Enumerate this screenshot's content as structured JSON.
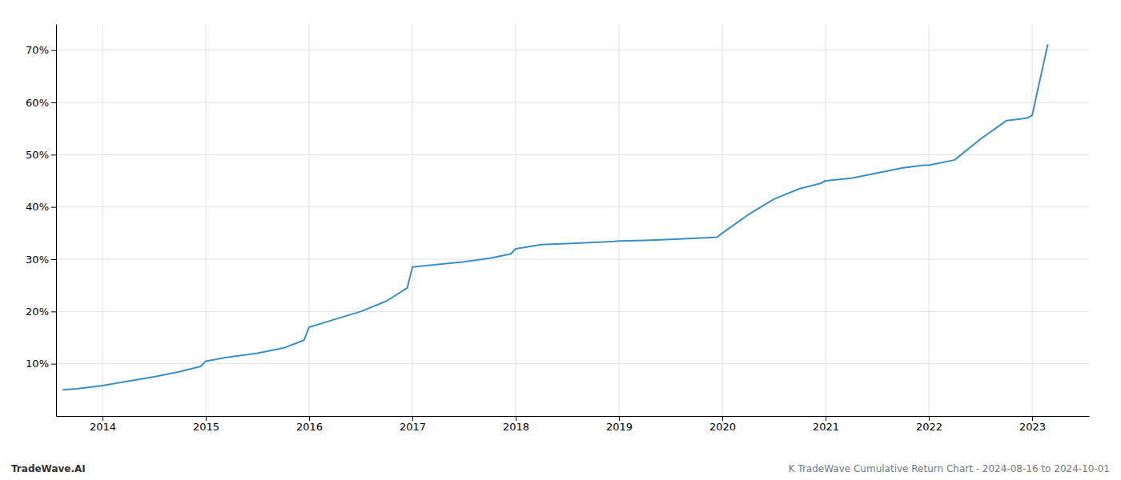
{
  "chart_data": {
    "type": "line",
    "x": [
      2013.62,
      2013.75,
      2014.0,
      2014.2,
      2014.5,
      2014.75,
      2014.95,
      2015.0,
      2015.2,
      2015.5,
      2015.75,
      2015.95,
      2016.0,
      2016.25,
      2016.5,
      2016.75,
      2016.95,
      2017.0,
      2017.25,
      2017.5,
      2017.75,
      2017.95,
      2018.0,
      2018.25,
      2018.5,
      2018.75,
      2018.95,
      2019.0,
      2019.25,
      2019.5,
      2019.75,
      2019.95,
      2020.0,
      2020.25,
      2020.5,
      2020.75,
      2020.95,
      2021.0,
      2021.25,
      2021.5,
      2021.75,
      2021.95,
      2022.0,
      2022.25,
      2022.5,
      2022.75,
      2022.95,
      2023.0,
      2023.15
    ],
    "values": [
      5.0,
      5.2,
      5.8,
      6.5,
      7.5,
      8.5,
      9.5,
      10.5,
      11.2,
      12.0,
      13.0,
      14.5,
      17.0,
      18.5,
      20.0,
      22.0,
      24.5,
      28.5,
      29.0,
      29.5,
      30.2,
      31.0,
      32.0,
      32.8,
      33.0,
      33.2,
      33.4,
      33.5,
      33.6,
      33.8,
      34.0,
      34.2,
      35.0,
      38.5,
      41.5,
      43.5,
      44.5,
      45.0,
      45.5,
      46.5,
      47.5,
      48.0,
      48.0,
      49.0,
      53.0,
      56.5,
      57.0,
      57.5,
      71.0
    ],
    "color": "#3a90c4",
    "xlim": [
      2013.55,
      2023.55
    ],
    "ylim": [
      0,
      75
    ],
    "xticks": [
      2014,
      2015,
      2016,
      2017,
      2018,
      2019,
      2020,
      2021,
      2022,
      2023
    ],
    "yticks": [
      {
        "value": 10,
        "label": "10%"
      },
      {
        "value": 20,
        "label": "20%"
      },
      {
        "value": 30,
        "label": "30%"
      },
      {
        "value": 40,
        "label": "40%"
      },
      {
        "value": 50,
        "label": "50%"
      },
      {
        "value": 60,
        "label": "60%"
      },
      {
        "value": 70,
        "label": "70%"
      }
    ],
    "grid": true,
    "annotations": [
      "TradeWave.AI",
      "K TradeWave Cumulative Return Chart - 2024-08-16 to 2024-10-01"
    ]
  }
}
